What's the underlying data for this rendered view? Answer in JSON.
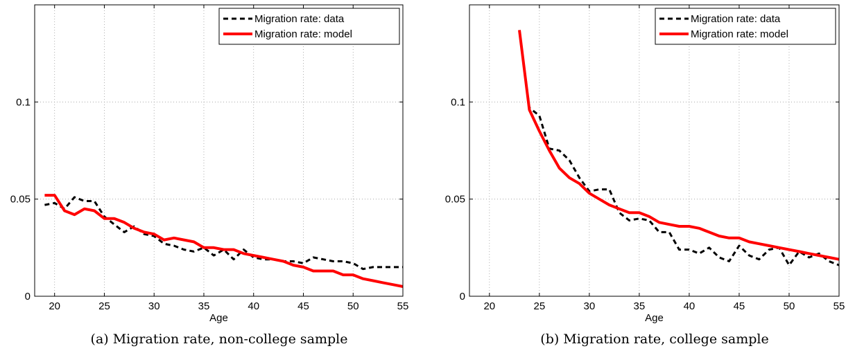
{
  "chart_data": [
    {
      "type": "line",
      "caption": "(a)  Migration rate, non-college sample",
      "xlabel": "Age",
      "ylabel": "",
      "xlim": [
        18,
        55
      ],
      "ylim": [
        0,
        0.15
      ],
      "xticks": [
        20,
        25,
        30,
        35,
        40,
        45,
        50,
        55
      ],
      "yticks": [
        0,
        0.05,
        0.1
      ],
      "ytick_labels": [
        "0",
        "0.05",
        "0.1"
      ],
      "grid": true,
      "legend_position": "top-right",
      "series": [
        {
          "name": "Migration rate: data",
          "color": "#000000",
          "style": "dashed",
          "x": [
            19,
            20,
            21,
            22,
            23,
            24,
            25,
            26,
            27,
            28,
            29,
            30,
            31,
            32,
            33,
            34,
            35,
            36,
            37,
            38,
            39,
            40,
            41,
            42,
            43,
            44,
            45,
            46,
            47,
            48,
            49,
            50,
            51,
            52,
            53,
            54,
            55
          ],
          "y": [
            0.047,
            0.048,
            0.045,
            0.051,
            0.049,
            0.049,
            0.041,
            0.037,
            0.033,
            0.036,
            0.032,
            0.031,
            0.027,
            0.026,
            0.024,
            0.023,
            0.025,
            0.021,
            0.024,
            0.019,
            0.024,
            0.02,
            0.019,
            0.019,
            0.018,
            0.018,
            0.017,
            0.02,
            0.019,
            0.018,
            0.018,
            0.017,
            0.014,
            0.015,
            0.015,
            0.015,
            0.015
          ]
        },
        {
          "name": "Migration rate: model",
          "color": "#ff0000",
          "style": "solid",
          "x": [
            19,
            20,
            21,
            22,
            23,
            24,
            25,
            26,
            27,
            28,
            29,
            30,
            31,
            32,
            33,
            34,
            35,
            36,
            37,
            38,
            39,
            40,
            41,
            42,
            43,
            44,
            45,
            46,
            47,
            48,
            49,
            50,
            51,
            52,
            53,
            54,
            55
          ],
          "y": [
            0.052,
            0.052,
            0.044,
            0.042,
            0.045,
            0.044,
            0.04,
            0.04,
            0.038,
            0.035,
            0.033,
            0.032,
            0.029,
            0.03,
            0.029,
            0.028,
            0.025,
            0.025,
            0.024,
            0.024,
            0.022,
            0.021,
            0.02,
            0.019,
            0.018,
            0.016,
            0.015,
            0.013,
            0.013,
            0.013,
            0.011,
            0.011,
            0.009,
            0.008,
            0.007,
            0.006,
            0.005
          ]
        }
      ]
    },
    {
      "type": "line",
      "caption": "(b)  Migration rate, college sample",
      "xlabel": "Age",
      "ylabel": "",
      "xlim": [
        18,
        55
      ],
      "ylim": [
        0,
        0.15
      ],
      "xticks": [
        20,
        25,
        30,
        35,
        40,
        45,
        50,
        55
      ],
      "yticks": [
        0,
        0.05,
        0.1
      ],
      "ytick_labels": [
        "0",
        "0.05",
        "0.1"
      ],
      "grid": true,
      "legend_position": "top-right",
      "series": [
        {
          "name": "Migration rate: data",
          "color": "#000000",
          "style": "dashed",
          "x": [
            23,
            24,
            25,
            26,
            27,
            28,
            29,
            30,
            31,
            32,
            33,
            34,
            35,
            36,
            37,
            38,
            39,
            40,
            41,
            42,
            43,
            44,
            45,
            46,
            47,
            48,
            49,
            50,
            51,
            52,
            53,
            54,
            55
          ],
          "y": [
            0.137,
            0.097,
            0.093,
            0.076,
            0.075,
            0.07,
            0.061,
            0.054,
            0.055,
            0.055,
            0.043,
            0.039,
            0.04,
            0.039,
            0.033,
            0.033,
            0.024,
            0.024,
            0.022,
            0.025,
            0.02,
            0.018,
            0.026,
            0.021,
            0.019,
            0.024,
            0.025,
            0.016,
            0.023,
            0.02,
            0.022,
            0.018,
            0.016
          ]
        },
        {
          "name": "Migration rate: model",
          "color": "#ff0000",
          "style": "solid",
          "x": [
            23,
            24,
            25,
            26,
            27,
            28,
            29,
            30,
            31,
            32,
            33,
            34,
            35,
            36,
            37,
            38,
            39,
            40,
            41,
            42,
            43,
            44,
            45,
            46,
            47,
            48,
            49,
            50,
            51,
            52,
            53,
            54,
            55
          ],
          "y": [
            0.137,
            0.096,
            0.085,
            0.075,
            0.066,
            0.061,
            0.058,
            0.053,
            0.05,
            0.047,
            0.045,
            0.043,
            0.043,
            0.041,
            0.038,
            0.037,
            0.036,
            0.036,
            0.035,
            0.033,
            0.031,
            0.03,
            0.03,
            0.028,
            0.027,
            0.026,
            0.025,
            0.024,
            0.023,
            0.022,
            0.021,
            0.02,
            0.019
          ]
        }
      ]
    }
  ]
}
